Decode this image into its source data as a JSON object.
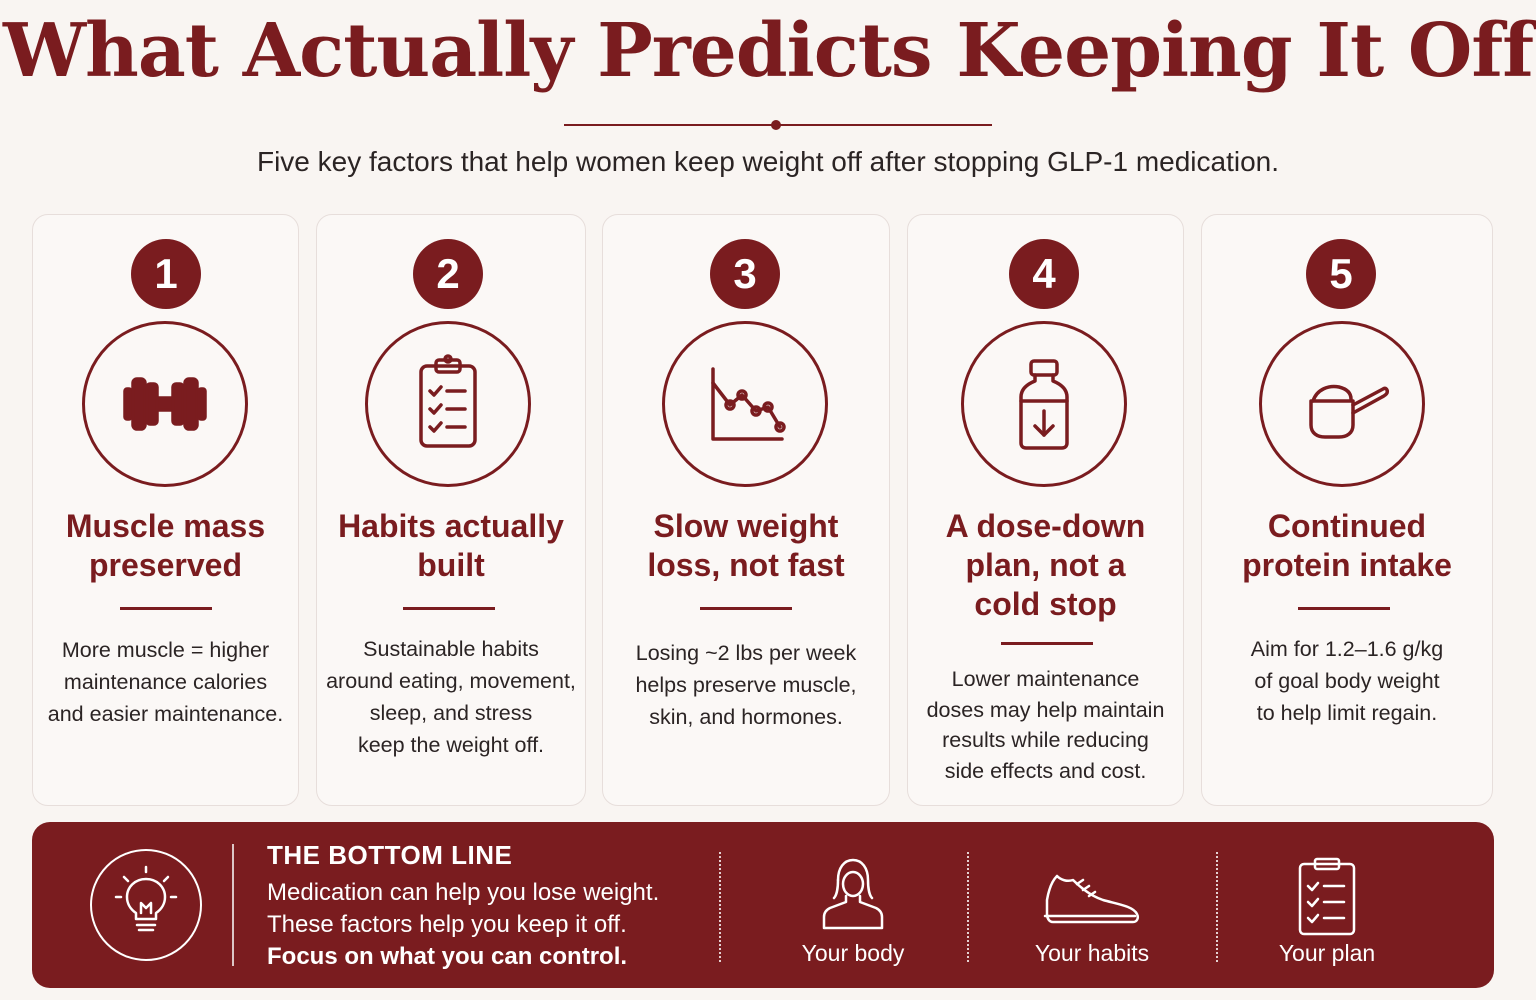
{
  "header": {
    "title": "What Actually Predicts Keeping It Off",
    "subtitle": "Five key factors that help women keep weight off after stopping GLP-1 medication."
  },
  "cards": [
    {
      "number": "1",
      "icon": "dumbbell-icon",
      "title": "Muscle mass\npreserved",
      "body": "More muscle = higher\nmaintenance calories\nand easier maintenance."
    },
    {
      "number": "2",
      "icon": "clipboard-checklist-icon",
      "title": "Habits actually\nbuilt",
      "body": "Sustainable habits\naround eating, movement,\nsleep, and stress\nkeep the weight off."
    },
    {
      "number": "3",
      "icon": "declining-line-chart-icon",
      "title": "Slow weight\nloss, not fast",
      "body": "Losing ~2 lbs per week\nhelps preserve muscle,\nskin, and hormones."
    },
    {
      "number": "4",
      "icon": "medicine-bottle-down-arrow-icon",
      "title": "A dose-down\nplan, not a\ncold stop",
      "body": "Lower maintenance\ndoses may help maintain\nresults while reducing\nside effects and cost."
    },
    {
      "number": "5",
      "icon": "protein-scoop-icon",
      "title": "Continued\nprotein intake",
      "body": "Aim for 1.2–1.6 g/kg\nof goal body weight\nto help limit regain."
    }
  ],
  "bottom_line": {
    "icon": "lightbulb-icon",
    "heading": "THE BOTTOM LINE",
    "line1": "Medication can help you lose weight.",
    "line2": "These factors help you keep it off.",
    "line3": "Focus on what you can control.",
    "features": [
      {
        "icon": "person-icon",
        "label": "Your body"
      },
      {
        "icon": "sneaker-icon",
        "label": "Your habits"
      },
      {
        "icon": "clipboard-icon",
        "label": "Your plan"
      }
    ]
  },
  "colors": {
    "accent": "#7a1c1f",
    "background": "#f9f5f2",
    "card_border": "#e7dedb"
  }
}
